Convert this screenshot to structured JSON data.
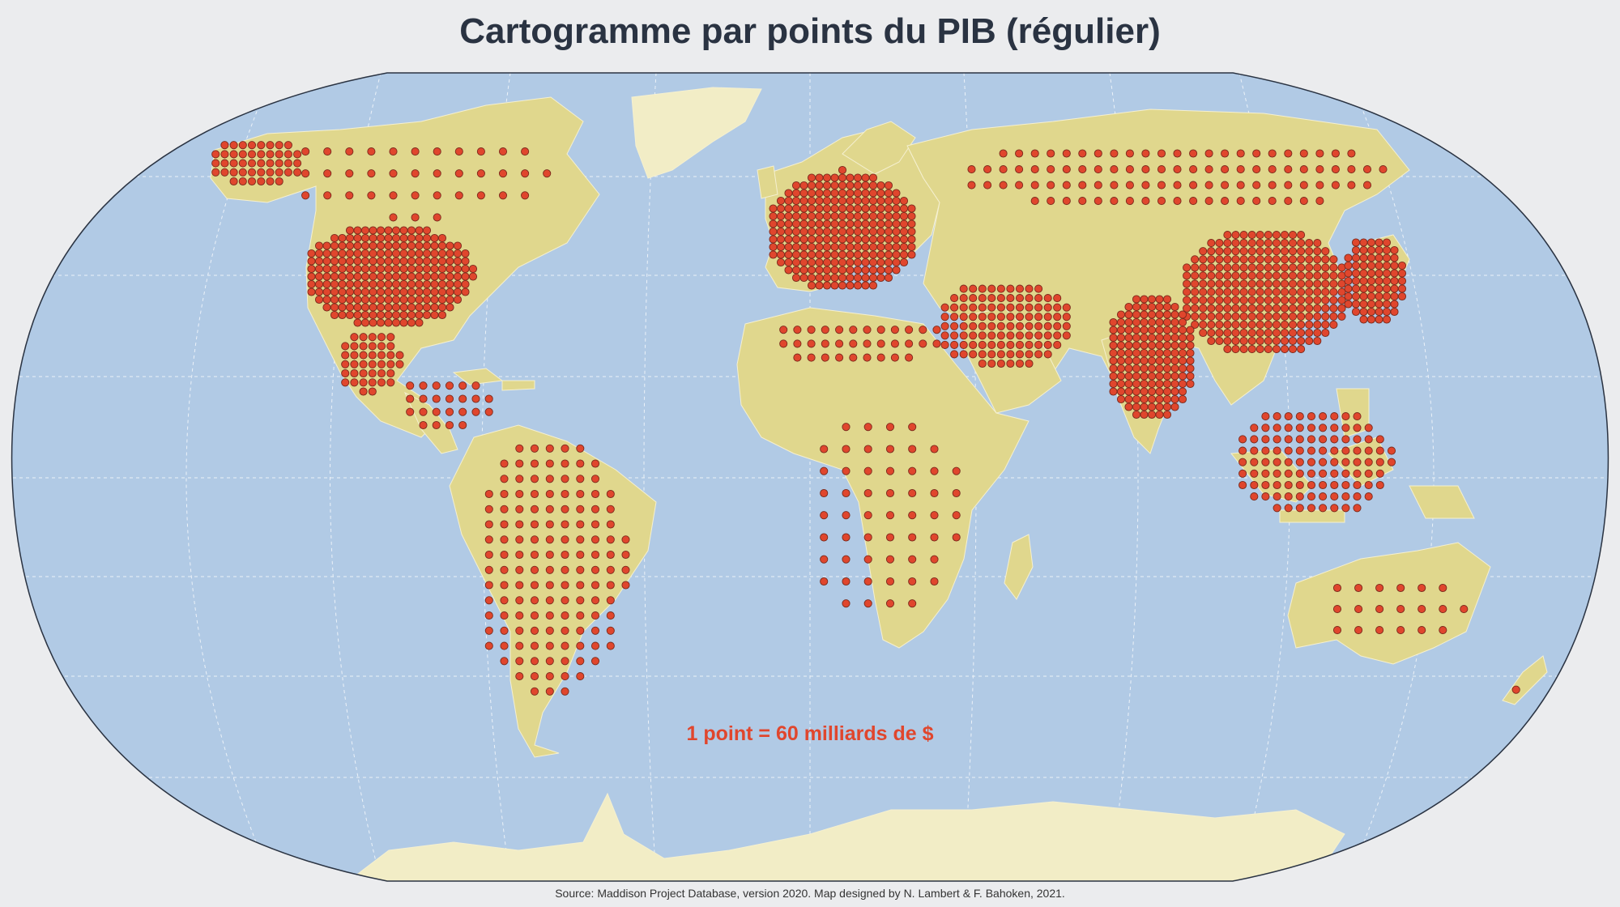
{
  "title": "Cartogramme par points du PIB (régulier)",
  "legend": {
    "label": "1 point = 60 milliards de $",
    "dot_value_billion_usd": 60
  },
  "source": "Source: Maddison Project Database, version 2020. Map designed by N. Lambert & F. Bahoken, 2021.",
  "colors": {
    "ocean": "#b1cae5",
    "land": "#e0d78d",
    "ice": "#f2edc6",
    "dot_fill": "#e0462d",
    "dot_stroke": "#7a2a1c",
    "graticule": "#ffffff",
    "title": "#2a3342",
    "legend_text": "#e0462d"
  },
  "dot_regions": [
    {
      "name": "Alaska",
      "dots": 45
    },
    {
      "name": "Canada",
      "dots": 40
    },
    {
      "name": "United States",
      "dots": 330
    },
    {
      "name": "Mexico",
      "dots": 40
    },
    {
      "name": "Central America & Caribbean",
      "dots": 25
    },
    {
      "name": "South America",
      "dots": 140
    },
    {
      "name": "Europe",
      "dots": 380
    },
    {
      "name": "Russia",
      "dots": 100
    },
    {
      "name": "Middle East",
      "dots": 110
    },
    {
      "name": "North Africa",
      "dots": 35
    },
    {
      "name": "Sub-Saharan Africa",
      "dots": 55
    },
    {
      "name": "China",
      "dots": 260
    },
    {
      "name": "India",
      "dots": 160
    },
    {
      "name": "Japan",
      "dots": 100
    },
    {
      "name": "Southeast Asia",
      "dots": 110
    },
    {
      "name": "Australia",
      "dots": 22
    },
    {
      "name": "New Zealand",
      "dots": 2
    }
  ]
}
